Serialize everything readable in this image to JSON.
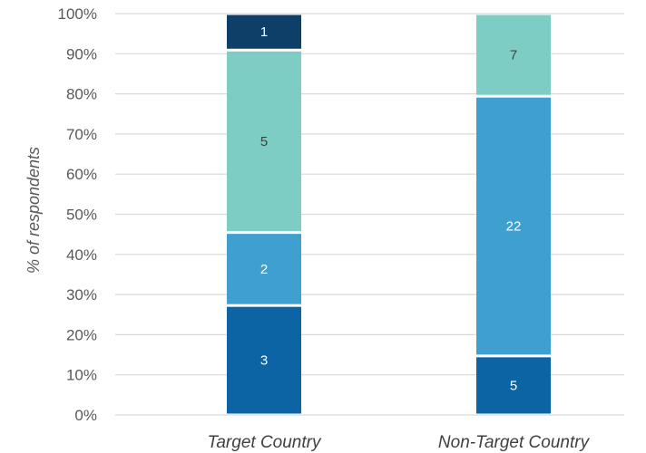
{
  "chart_data": {
    "type": "bar",
    "stacked": true,
    "percent_stacked": true,
    "title": "",
    "xlabel": "",
    "ylabel": "% of respondents",
    "ylim": [
      0,
      100
    ],
    "y_ticks": [
      "0%",
      "10%",
      "20%",
      "30%",
      "40%",
      "50%",
      "60%",
      "70%",
      "80%",
      "90%",
      "100%"
    ],
    "categories": [
      "Target Country",
      "Non-Target Country"
    ],
    "grid": true,
    "legend": "none",
    "series": [
      {
        "values": [
          3,
          5
        ],
        "labels": [
          "3",
          "5"
        ],
        "color": "#0c64a4",
        "label_color": "#ffffff"
      },
      {
        "values": [
          2,
          22
        ],
        "labels": [
          "2",
          "22"
        ],
        "color": "#3fa0cf",
        "label_color": "#ffffff"
      },
      {
        "values": [
          5,
          7
        ],
        "labels": [
          "5",
          "7"
        ],
        "color": "#7ecdc4",
        "label_color": "#404040"
      },
      {
        "values": [
          1,
          0
        ],
        "labels": [
          "1",
          ""
        ],
        "color": "#0e3f68",
        "label_color": "#ffffff"
      }
    ]
  }
}
